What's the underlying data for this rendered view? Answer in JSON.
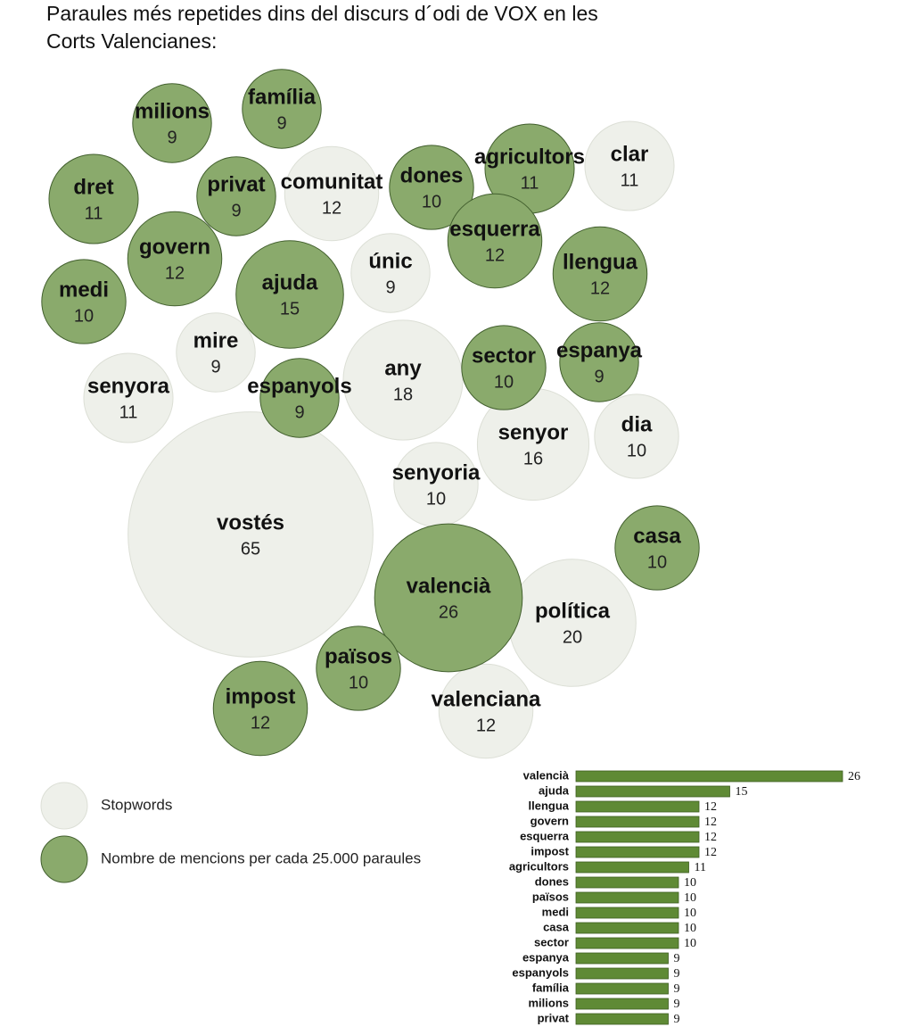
{
  "chart_data": [
    {
      "type": "bubble",
      "title": "Paraules més repetides dins del discurs d´odi de VOX en les Corts Valencianes:",
      "series": [
        {
          "name": "Stopwords",
          "color": "#eef0ea",
          "labels": [
            "comunitat",
            "clar",
            "únic",
            "mire",
            "senyora",
            "any",
            "senyor",
            "dia",
            "senyoria",
            "vostés",
            "política",
            "valenciana"
          ],
          "values": [
            12,
            11,
            9,
            9,
            11,
            18,
            16,
            10,
            10,
            65,
            20,
            12
          ]
        },
        {
          "name": "Nombre de mencions per cada 25.000 paraules",
          "color": "#8aaa6c",
          "labels": [
            "milions",
            "família",
            "dret",
            "privat",
            "dones",
            "agricultors",
            "esquerra",
            "govern",
            "medi",
            "ajuda",
            "llengua",
            "espanyols",
            "sector",
            "espanya",
            "valencià",
            "casa",
            "països",
            "impost"
          ],
          "values": [
            9,
            9,
            11,
            9,
            10,
            11,
            12,
            12,
            10,
            15,
            12,
            9,
            10,
            9,
            26,
            10,
            10,
            12
          ]
        }
      ]
    },
    {
      "type": "bar",
      "color": "#5f8a35",
      "categories": [
        "valencià",
        "ajuda",
        "llengua",
        "govern",
        "esquerra",
        "impost",
        "agricultors",
        "dones",
        "països",
        "medi",
        "casa",
        "sector",
        "espanya",
        "espanyols",
        "família",
        "milions",
        "privat"
      ],
      "values": [
        26,
        15,
        12,
        12,
        12,
        12,
        11,
        10,
        10,
        10,
        10,
        10,
        9,
        9,
        9,
        9,
        9
      ]
    }
  ]
}
